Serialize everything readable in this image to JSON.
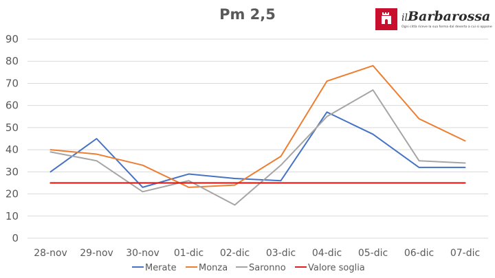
{
  "chart_data": {
    "type": "line",
    "title": "Pm 2,5",
    "categories": [
      "28-nov",
      "29-nov",
      "30-nov",
      "01-dic",
      "02-dic",
      "03-dic",
      "04-dic",
      "05-dic",
      "06-dic",
      "07-dic"
    ],
    "series": [
      {
        "name": "Merate",
        "color": "#4472c4",
        "values": [
          30,
          45,
          23,
          29,
          27,
          26,
          57,
          47,
          32,
          32
        ]
      },
      {
        "name": "Monza",
        "color": "#ed7d31",
        "values": [
          40,
          38,
          33,
          23,
          24,
          37,
          71,
          78,
          54,
          44
        ]
      },
      {
        "name": "Saronno",
        "color": "#a5a5a5",
        "values": [
          39,
          35,
          21,
          26,
          15,
          33,
          55,
          67,
          35,
          34
        ]
      },
      {
        "name": "Valore soglia",
        "color": "#e0201b",
        "values": [
          25,
          25,
          25,
          25,
          25,
          25,
          25,
          25,
          25,
          25
        ]
      }
    ],
    "ylim": [
      0,
      90
    ],
    "yticks": [
      0,
      10,
      20,
      30,
      40,
      50,
      60,
      70,
      80,
      90
    ],
    "grid": true,
    "legend_position": "bottom"
  },
  "logo": {
    "name_prefix": "il",
    "name": "Barbarossa",
    "tagline": "Ogni città riceve la sua forma dal deserto a cui si oppone",
    "color": "#c8102e"
  }
}
